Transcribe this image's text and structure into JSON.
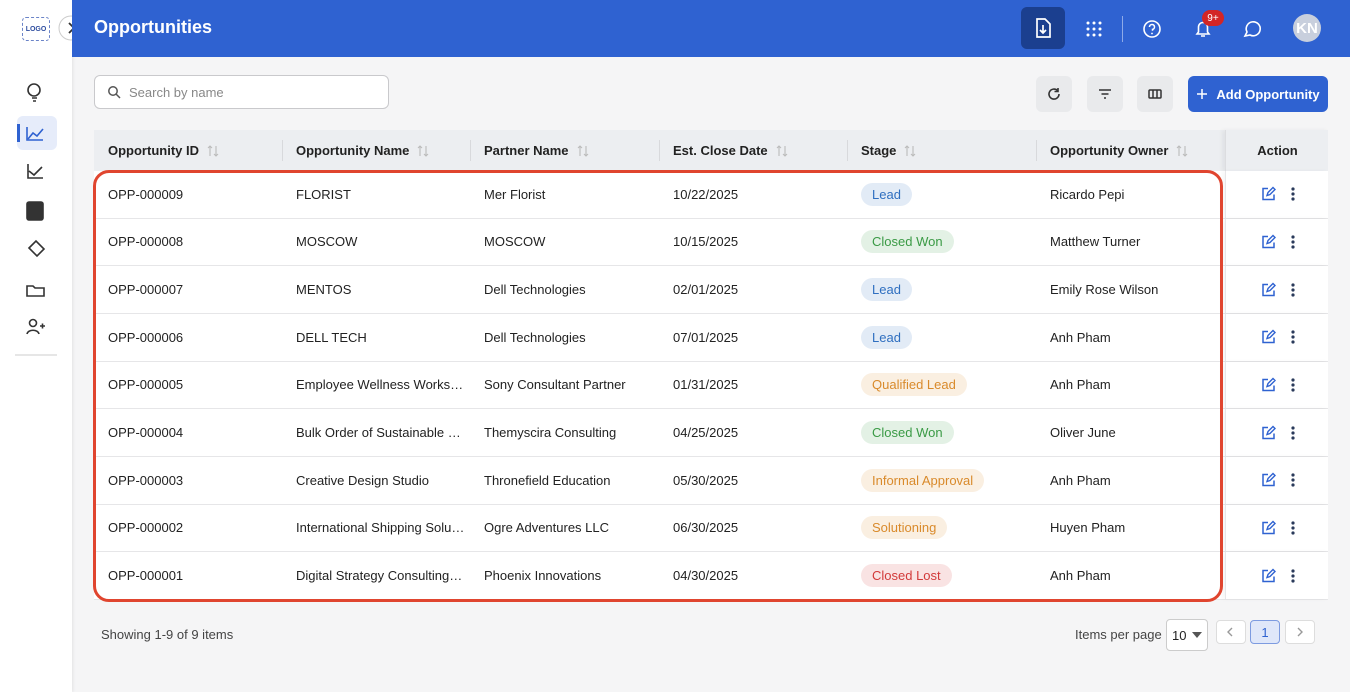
{
  "sidebar": {
    "logo": "LOGO"
  },
  "header": {
    "title": "Opportunities",
    "notification_badge": "9+",
    "avatar": "KN"
  },
  "toolbar": {
    "search_placeholder": "Search by name",
    "add_button": "Add Opportunity"
  },
  "table": {
    "columns": [
      "Opportunity ID",
      "Opportunity Name",
      "Partner Name",
      "Est. Close Date",
      "Stage",
      "Opportunity Owner"
    ],
    "action_column": "Action",
    "rows": [
      {
        "id": "OPP-000009",
        "name": "FLORIST",
        "partner": "Mer Florist",
        "close_date": "10/22/2025",
        "stage": "Lead",
        "stage_color": "#2f6fc0",
        "owner": "Ricardo Pepi"
      },
      {
        "id": "OPP-000008",
        "name": "MOSCOW",
        "partner": "MOSCOW",
        "close_date": "10/15/2025",
        "stage": "Closed Won",
        "stage_color": "#3a9a45",
        "owner": "Matthew Turner"
      },
      {
        "id": "OPP-000007",
        "name": "MENTOS",
        "partner": "Dell Technologies",
        "close_date": "02/01/2025",
        "stage": "Lead",
        "stage_color": "#2f6fc0",
        "owner": "Emily Rose Wilson"
      },
      {
        "id": "OPP-000006",
        "name": "DELL TECH",
        "partner": "Dell Technologies",
        "close_date": "07/01/2025",
        "stage": "Lead",
        "stage_color": "#2f6fc0",
        "owner": "Anh Pham"
      },
      {
        "id": "OPP-000005",
        "name": "Employee Wellness Works…",
        "partner": "Sony Consultant Partner",
        "close_date": "01/31/2025",
        "stage": "Qualified Lead",
        "stage_color": "#d98a2b",
        "owner": "Anh Pham"
      },
      {
        "id": "OPP-000004",
        "name": "Bulk Order of Sustainable …",
        "partner": "Themyscira Consulting",
        "close_date": "04/25/2025",
        "stage": "Closed Won",
        "stage_color": "#3a9a45",
        "owner": "Oliver June"
      },
      {
        "id": "OPP-000003",
        "name": "Creative Design Studio",
        "partner": "Thronefield Education",
        "close_date": "05/30/2025",
        "stage": "Informal Approval",
        "stage_color": "#d98a2b",
        "owner": "Anh Pham"
      },
      {
        "id": "OPP-000002",
        "name": "International Shipping Solu…",
        "partner": "Ogre Adventures LLC",
        "close_date": "06/30/2025",
        "stage": "Solutioning",
        "stage_color": "#d98a2b",
        "owner": "Huyen Pham"
      },
      {
        "id": "OPP-000001",
        "name": "Digital Strategy Consulting…",
        "partner": "Phoenix Innovations",
        "close_date": "04/30/2025",
        "stage": "Closed Lost",
        "stage_color": "#d23a3a",
        "owner": "Anh Pham"
      }
    ]
  },
  "footer": {
    "summary": "Showing 1-9 of 9 items",
    "items_per_page_label": "Items per page",
    "items_per_page": "10",
    "current_page": "1"
  }
}
